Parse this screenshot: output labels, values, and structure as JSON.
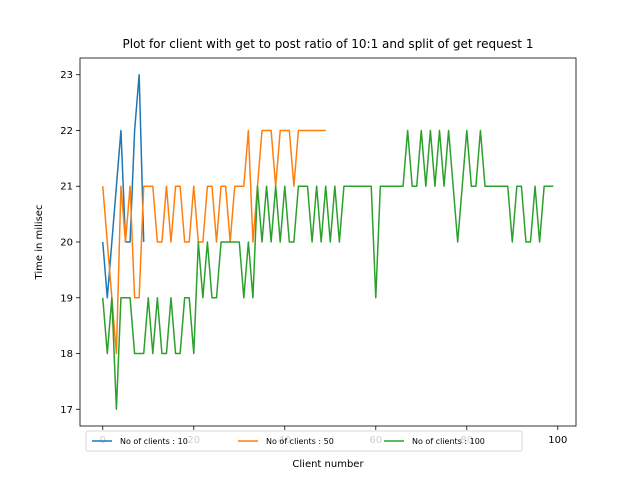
{
  "chart_data": {
    "type": "line",
    "title": "Plot for client with get to post ratio of 10:1 and split of get request 1",
    "xlabel": "Client number",
    "ylabel": "Time in milisec",
    "xlim": [
      -5,
      104
    ],
    "ylim": [
      16.7,
      23.3
    ],
    "xticks": [
      0,
      20,
      40,
      60,
      80,
      100
    ],
    "yticks": [
      17,
      18,
      19,
      20,
      21,
      22,
      23
    ],
    "grid": false,
    "legend_position": "bottom-left",
    "series": [
      {
        "name": "No of clients : 10",
        "color": "#1f77b4",
        "x": [
          0,
          1,
          2,
          3,
          4,
          5,
          6,
          7,
          8,
          9
        ],
        "y": [
          20,
          19,
          20,
          21,
          22,
          20,
          20,
          22,
          23,
          20
        ]
      },
      {
        "name": "No of clients : 50",
        "color": "#ff7f0e",
        "x": [
          0,
          1,
          2,
          3,
          4,
          5,
          6,
          7,
          8,
          9,
          10,
          11,
          12,
          13,
          14,
          15,
          16,
          17,
          18,
          19,
          20,
          21,
          22,
          23,
          24,
          25,
          26,
          27,
          28,
          29,
          30,
          31,
          32,
          33,
          34,
          35,
          36,
          37,
          38,
          39,
          40,
          41,
          42,
          43,
          44,
          45,
          46,
          47,
          48,
          49
        ],
        "y": [
          21,
          20,
          19,
          18,
          21,
          20,
          21,
          19,
          19,
          21,
          21,
          21,
          20,
          20,
          21,
          20,
          21,
          21,
          20,
          20,
          21,
          20,
          20,
          21,
          21,
          20,
          21,
          21,
          20,
          21,
          21,
          21,
          22,
          20,
          21,
          22,
          22,
          22,
          21,
          22,
          22,
          22,
          21,
          22,
          22,
          22,
          22,
          22,
          22,
          22
        ]
      },
      {
        "name": "No of clients : 100",
        "color": "#2ca02c",
        "x": [
          0,
          1,
          2,
          3,
          4,
          5,
          6,
          7,
          8,
          9,
          10,
          11,
          12,
          13,
          14,
          15,
          16,
          17,
          18,
          19,
          20,
          21,
          22,
          23,
          24,
          25,
          26,
          27,
          28,
          29,
          30,
          31,
          32,
          33,
          34,
          35,
          36,
          37,
          38,
          39,
          40,
          41,
          42,
          43,
          44,
          45,
          46,
          47,
          48,
          49,
          50,
          51,
          52,
          53,
          54,
          55,
          56,
          57,
          58,
          59,
          60,
          61,
          62,
          63,
          64,
          65,
          66,
          67,
          68,
          69,
          70,
          71,
          72,
          73,
          74,
          75,
          76,
          77,
          78,
          79,
          80,
          81,
          82,
          83,
          84,
          85,
          86,
          87,
          88,
          89,
          90,
          91,
          92,
          93,
          94,
          95,
          96,
          97,
          98,
          99
        ],
        "y": [
          19,
          18,
          19,
          17,
          19,
          19,
          19,
          18,
          18,
          18,
          19,
          18,
          19,
          18,
          18,
          19,
          18,
          18,
          19,
          19,
          18,
          20,
          19,
          20,
          19,
          19,
          20,
          20,
          20,
          20,
          20,
          19,
          20,
          19,
          21,
          20,
          21,
          20,
          21,
          20,
          21,
          20,
          20,
          21,
          21,
          21,
          20,
          21,
          20,
          21,
          20,
          21,
          20,
          21,
          21,
          21,
          21,
          21,
          21,
          21,
          19,
          21,
          21,
          21,
          21,
          21,
          21,
          22,
          21,
          21,
          22,
          21,
          22,
          21,
          22,
          21,
          22,
          21,
          20,
          21,
          22,
          21,
          21,
          22,
          21,
          21,
          21,
          21,
          21,
          21,
          20,
          21,
          21,
          20,
          20,
          21,
          20,
          21,
          21,
          21
        ]
      }
    ]
  }
}
